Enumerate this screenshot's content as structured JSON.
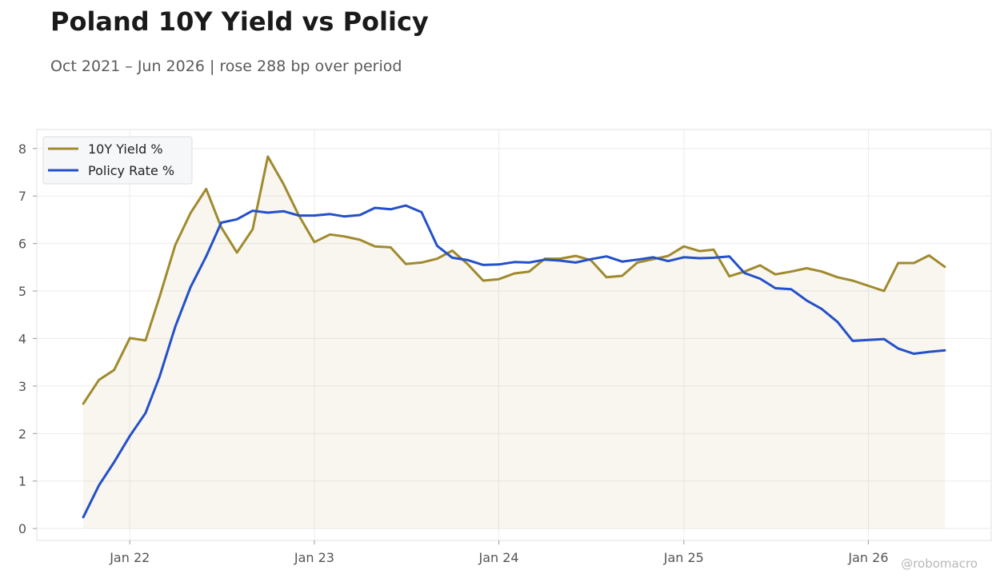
{
  "chart_data": {
    "type": "line",
    "title": "Poland 10Y Yield vs Policy",
    "subtitle": "Oct 2021 – Jun 2026 | rose 288 bp over period",
    "watermark": "@robomacro",
    "x": [
      "2021-10",
      "2021-11",
      "2021-12",
      "2022-01",
      "2022-02",
      "2022-03",
      "2022-04",
      "2022-05",
      "2022-06",
      "2022-07",
      "2022-08",
      "2022-09",
      "2022-10",
      "2022-11",
      "2022-12",
      "2023-01",
      "2023-02",
      "2023-03",
      "2023-04",
      "2023-05",
      "2023-06",
      "2023-07",
      "2023-08",
      "2023-09",
      "2023-10",
      "2023-11",
      "2023-12",
      "2024-01",
      "2024-02",
      "2024-03",
      "2024-04",
      "2024-05",
      "2024-06",
      "2024-07",
      "2024-08",
      "2024-09",
      "2024-10",
      "2024-11",
      "2024-12",
      "2025-01",
      "2025-02",
      "2025-03",
      "2025-04",
      "2025-05",
      "2025-06",
      "2025-07",
      "2025-08",
      "2025-09",
      "2025-10",
      "2025-11",
      "2025-12",
      "2026-01",
      "2026-02",
      "2026-03",
      "2026-04",
      "2026-05",
      "2026-06"
    ],
    "x_ticks": [
      "Jan 22",
      "Jan 23",
      "Jan 24",
      "Jan 25",
      "Jan 26"
    ],
    "x_tick_values": [
      "2022-01",
      "2023-01",
      "2024-01",
      "2025-01",
      "2026-01"
    ],
    "ylim": [
      -0.25,
      8.4
    ],
    "y_ticks": [
      0,
      1,
      2,
      3,
      4,
      5,
      6,
      7,
      8
    ],
    "grid": true,
    "legend_position": "top-left",
    "series": [
      {
        "name": "10Y Yield %",
        "color": "#a08a2e",
        "fill": true,
        "values": [
          2.63,
          3.13,
          3.34,
          4.01,
          3.96,
          4.88,
          5.97,
          6.64,
          7.15,
          6.34,
          5.81,
          6.3,
          7.83,
          7.25,
          6.6,
          6.03,
          6.19,
          6.15,
          6.08,
          5.94,
          5.92,
          5.57,
          5.6,
          5.68,
          5.85,
          5.56,
          5.22,
          5.25,
          5.37,
          5.41,
          5.68,
          5.68,
          5.74,
          5.65,
          5.29,
          5.32,
          5.6,
          5.67,
          5.74,
          5.94,
          5.84,
          5.87,
          5.31,
          5.41,
          5.54,
          5.35,
          5.41,
          5.48,
          5.41,
          5.29,
          5.22,
          5.11,
          5.0,
          5.59,
          5.59,
          5.75,
          5.51
        ]
      },
      {
        "name": "Policy Rate %",
        "color": "#2450c8",
        "fill": false,
        "values": [
          0.24,
          0.91,
          1.4,
          1.95,
          2.43,
          3.2,
          4.25,
          5.08,
          5.73,
          6.44,
          6.51,
          6.69,
          6.65,
          6.68,
          6.59,
          6.59,
          6.62,
          6.57,
          6.6,
          6.75,
          6.72,
          6.8,
          6.66,
          5.95,
          5.7,
          5.65,
          5.55,
          5.56,
          5.61,
          5.6,
          5.66,
          5.64,
          5.6,
          5.67,
          5.73,
          5.62,
          5.66,
          5.71,
          5.63,
          5.71,
          5.69,
          5.7,
          5.73,
          5.38,
          5.26,
          5.06,
          5.04,
          4.8,
          4.62,
          4.35,
          3.95,
          3.97,
          3.99,
          3.79,
          3.68,
          3.72,
          3.75
        ]
      }
    ]
  }
}
